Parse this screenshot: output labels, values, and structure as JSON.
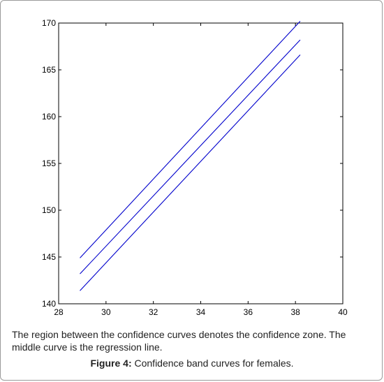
{
  "chart_data": {
    "type": "line",
    "title": "",
    "xlabel": "",
    "ylabel": "",
    "xlim": [
      28,
      40
    ],
    "ylim": [
      140,
      170
    ],
    "xticks": [
      28,
      30,
      32,
      34,
      36,
      38,
      40
    ],
    "yticks": [
      140,
      145,
      150,
      155,
      160,
      165,
      170
    ],
    "grid": false,
    "line_color": "#0000cc",
    "series": [
      {
        "x": [
          28.9,
          38.2
        ],
        "y": [
          144.9,
          170.2
        ]
      },
      {
        "x": [
          28.9,
          38.2
        ],
        "y": [
          143.2,
          168.2
        ]
      },
      {
        "x": [
          28.9,
          38.2
        ],
        "y": [
          141.4,
          166.6
        ]
      }
    ]
  },
  "caption": {
    "body": "The region between the confidence curves denotes the confidence zone. The middle curve is the regression line.",
    "figure_label": "Figure 4:",
    "figure_text": " Confidence band curves for females."
  }
}
